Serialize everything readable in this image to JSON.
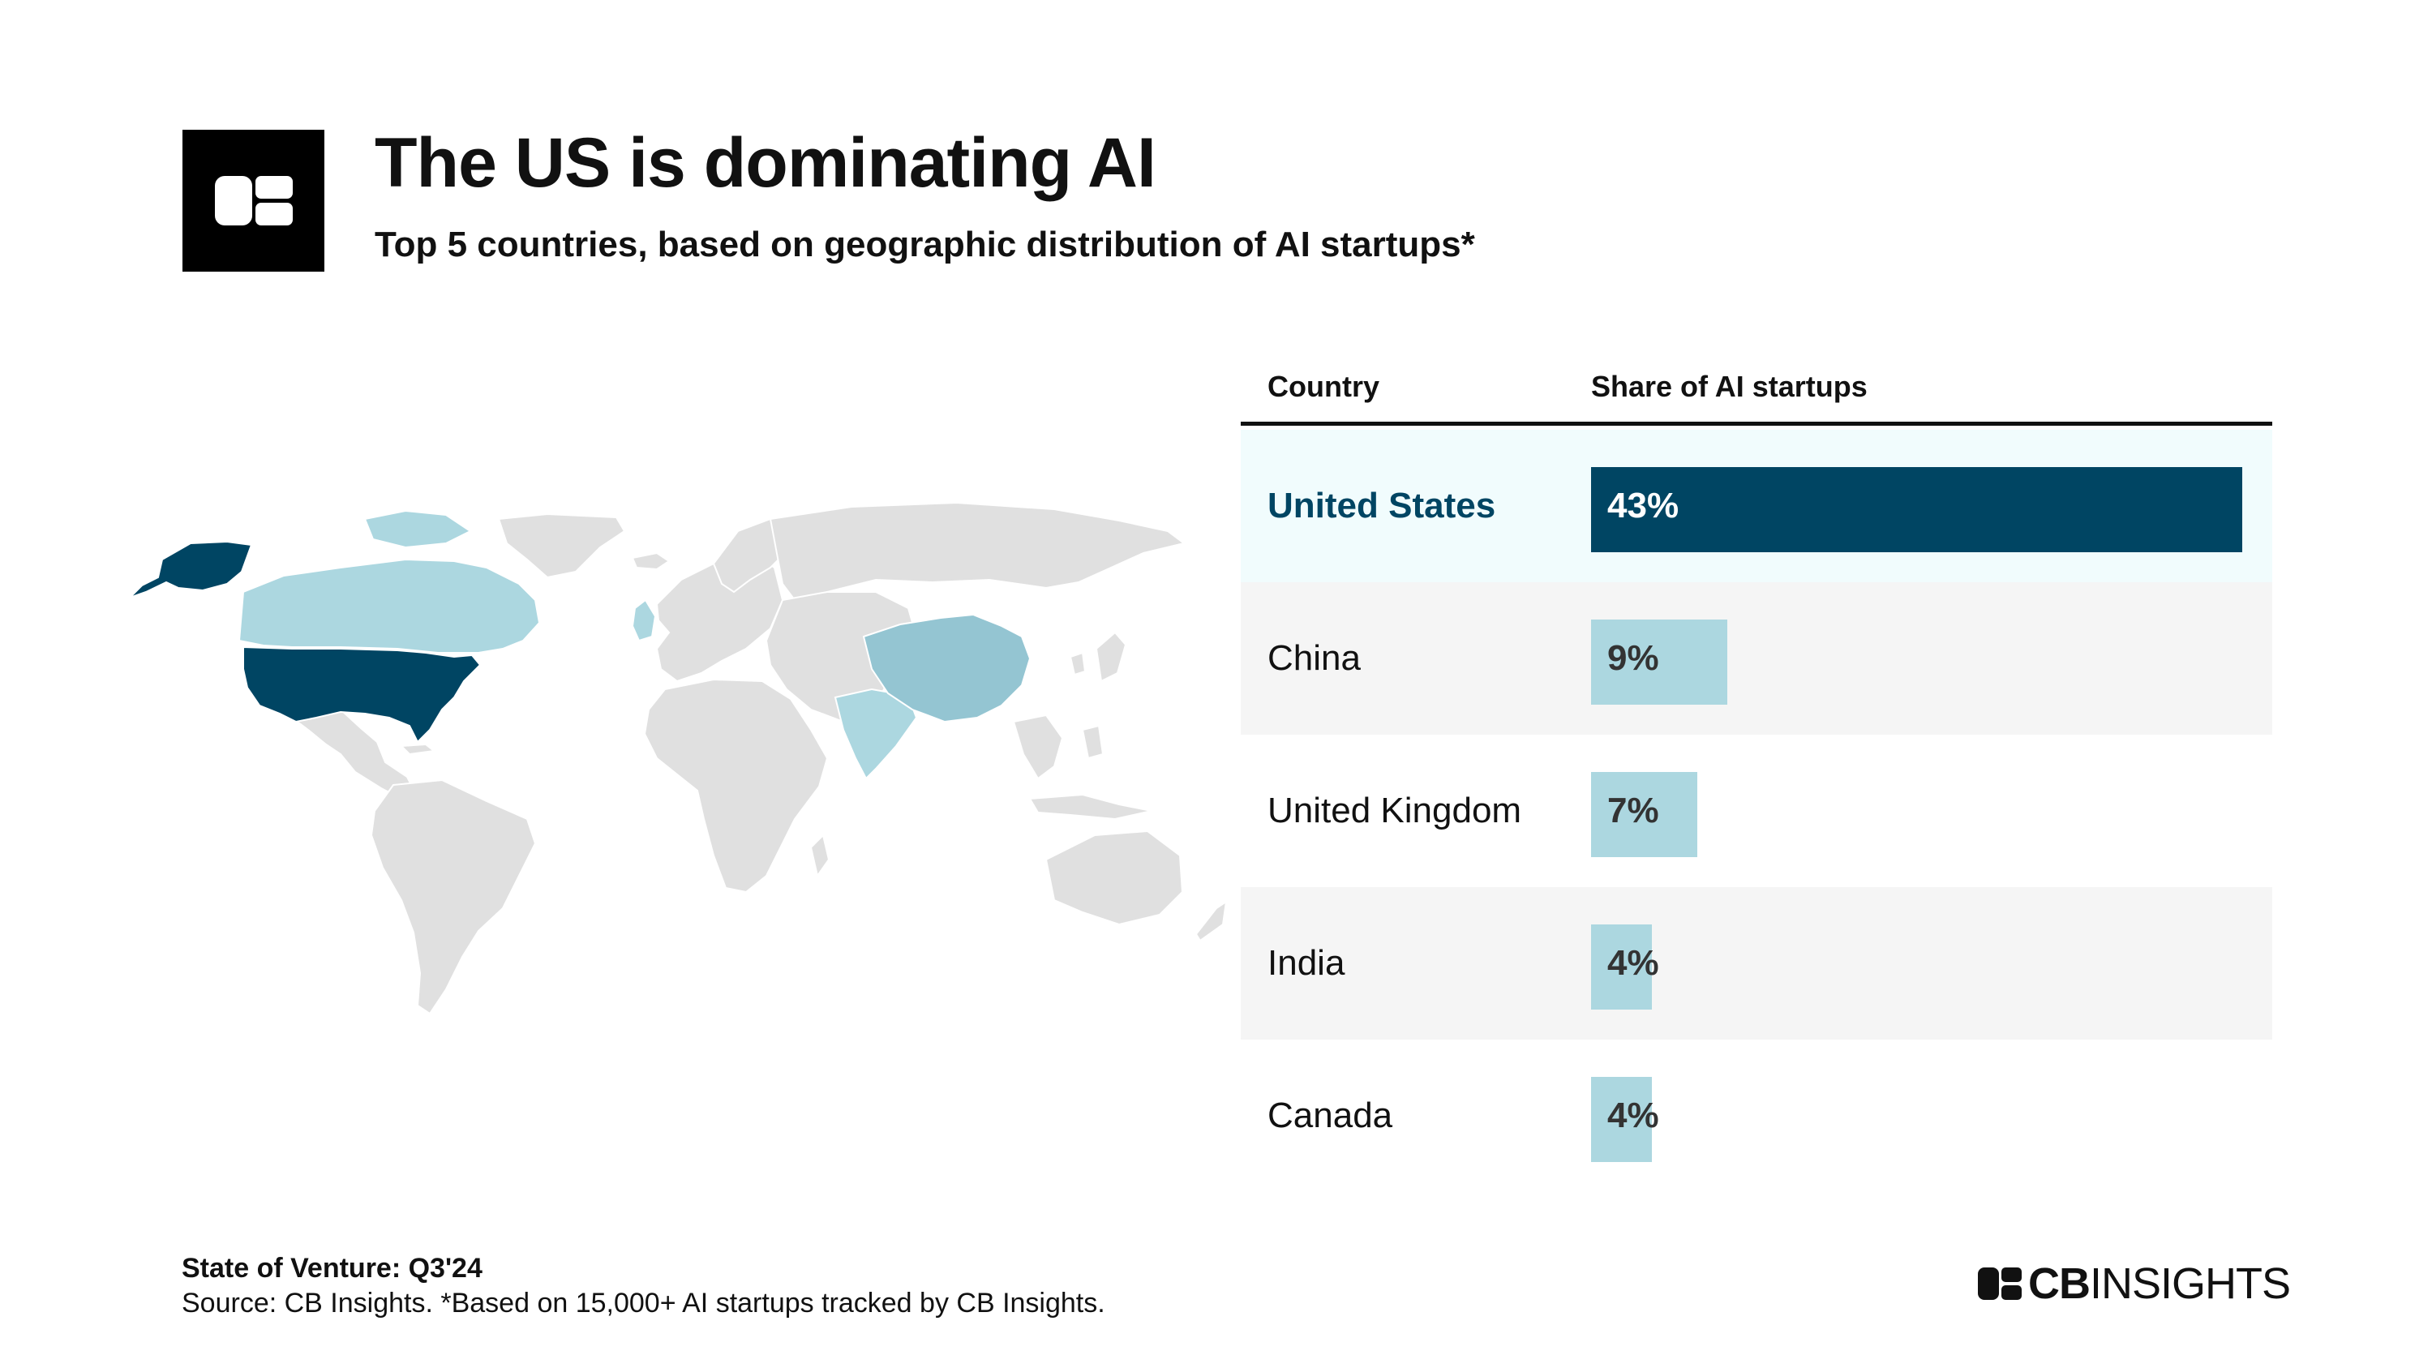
{
  "header": {
    "title": "The US is dominating AI",
    "subtitle": "Top 5 countries, based on geographic distribution of AI startups*"
  },
  "table": {
    "col_country": "Country",
    "col_share": "Share of AI startups"
  },
  "chart_data": {
    "type": "bar",
    "orientation": "horizontal",
    "categories": [
      "United States",
      "China",
      "United Kingdom",
      "India",
      "Canada"
    ],
    "values": [
      43,
      9,
      7,
      4,
      4
    ],
    "value_labels": [
      "43%",
      "9%",
      "7%",
      "4%",
      "4%"
    ],
    "xlim": [
      0,
      45
    ],
    "highlight": "United States",
    "colors": {
      "highlight_bar": "#004563",
      "bar": "#acd7e0",
      "highlight_row_bg": "#f1fcfd",
      "alt_row_bg": "#f5f5f5",
      "highlight_text": "#004563"
    }
  },
  "map": {
    "colors": {
      "dark": "#004563",
      "medium": "#94c5d2",
      "light": "#acd7e0",
      "other": "#e0e0e0"
    }
  },
  "footer": {
    "report": "State of Venture: Q3'24",
    "source": "Source: CB Insights. *Based on 15,000+ AI startups tracked by CB Insights."
  },
  "brand": {
    "name_bold": "CB",
    "name_rest": "INSIGHTS"
  }
}
